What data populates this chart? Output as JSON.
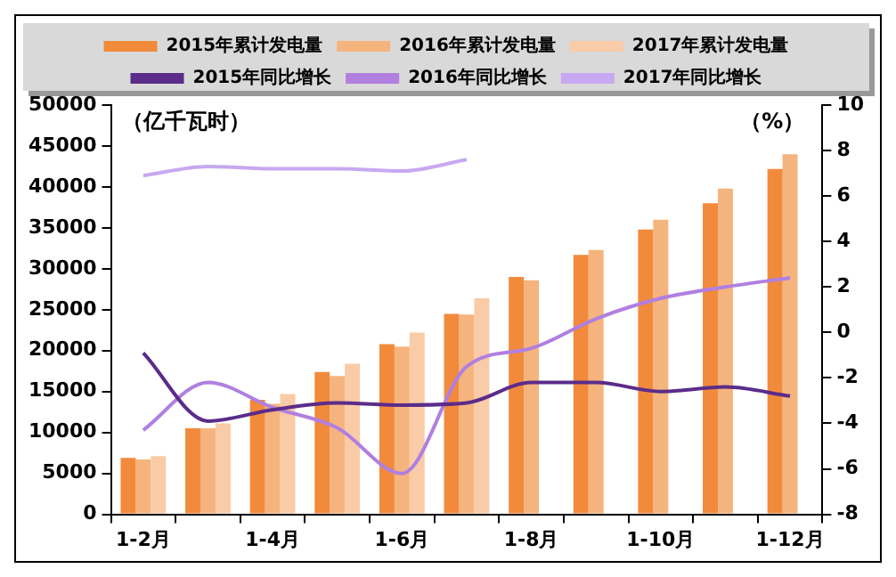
{
  "chart_data": {
    "type": "bar",
    "ylabel": "（亿千瓦时）",
    "y2label": "（%）",
    "categories": [
      "1-2月",
      null,
      "1-4月",
      null,
      "1-6月",
      null,
      "1-8月",
      null,
      "1-10月",
      null,
      "1-12月"
    ],
    "series": [
      {
        "name": "2015年累计发电量",
        "color": "#f28a3c",
        "values": [
          6900,
          10500,
          14000,
          17400,
          20800,
          24500,
          29000,
          31700,
          34800,
          38000,
          42200
        ]
      },
      {
        "name": "2016年累计发电量",
        "color": "#f5b47e",
        "values": [
          6700,
          10500,
          13500,
          16900,
          20500,
          24400,
          28600,
          32300,
          36000,
          39800,
          44000
        ]
      },
      {
        "name": "2017年累计发电量",
        "color": "#f9cba6",
        "values": [
          7100,
          11100,
          14700,
          18400,
          22200,
          26400,
          null,
          null,
          null,
          null,
          null
        ]
      },
      {
        "name": "2015年同比增长",
        "type": "line",
        "axis": "y2",
        "color": "#5b2c8a",
        "values": [
          -0.9,
          -3.9,
          -3.4,
          -3.1,
          -3.2,
          -3.1,
          -2.2,
          -2.2,
          -2.6,
          -2.4,
          -2.8
        ]
      },
      {
        "name": "2016年同比增长",
        "type": "line",
        "axis": "y2",
        "color": "#b07fe0",
        "values": [
          -4.3,
          -2.2,
          -3.3,
          -4.2,
          -6.2,
          -1.5,
          -0.7,
          0.6,
          1.5,
          2.0,
          2.4
        ]
      },
      {
        "name": "2017年同比增长",
        "type": "line",
        "axis": "y2",
        "color": "#c8a8f0",
        "values": [
          6.9,
          7.3,
          7.2,
          7.2,
          7.1,
          7.6,
          null,
          null,
          null,
          null,
          null
        ]
      }
    ],
    "ylim": [
      0,
      50000
    ],
    "yticks": [
      0,
      5000,
      10000,
      15000,
      20000,
      25000,
      30000,
      35000,
      40000,
      45000,
      50000
    ],
    "y2lim": [
      -8,
      10
    ],
    "y2ticks": [
      -8,
      -6,
      -4,
      -2,
      0,
      2,
      4,
      6,
      8,
      10
    ],
    "grid": false,
    "legend": "top",
    "marker": "none",
    "line_style": "solid"
  }
}
